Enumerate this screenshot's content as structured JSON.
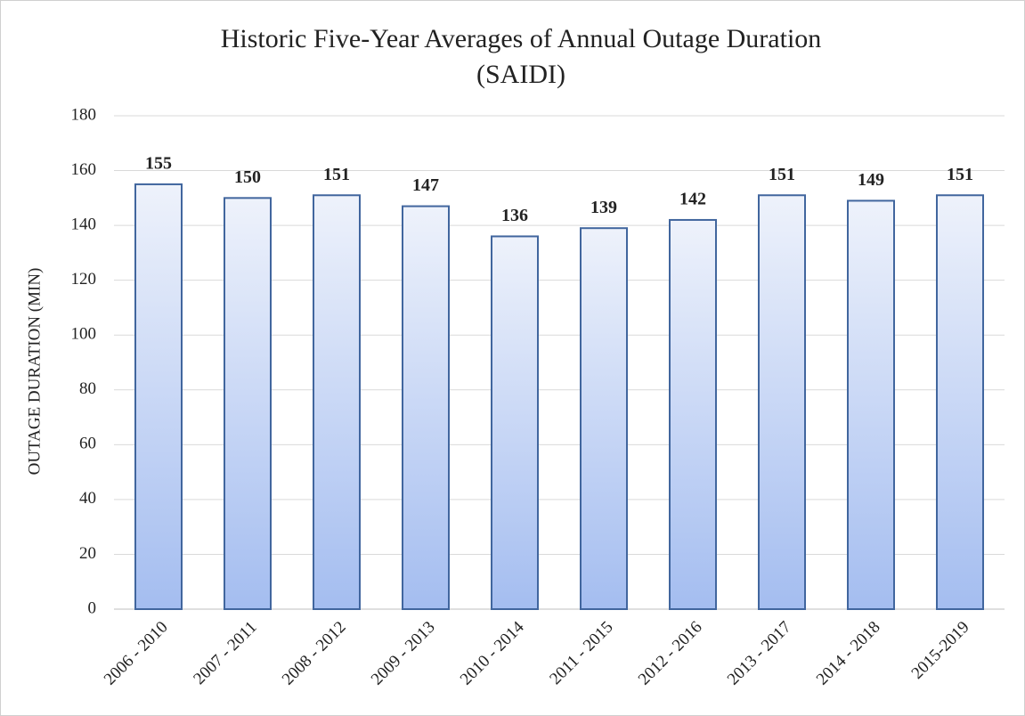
{
  "chart_data": {
    "type": "bar",
    "title": [
      "Historic Five-Year Averages of Annual Outage Duration",
      "(SAIDI)"
    ],
    "ylabel": "OUTAGE DURATION (MIN)",
    "categories": [
      "2006 - 2010",
      "2007 - 2011",
      "2008 - 2012",
      "2009 - 2013",
      "2010 - 2014",
      "2011 - 2015",
      "2012 - 2016",
      "2013 - 2017",
      "2014 - 2018",
      "2015-2019"
    ],
    "values": [
      155,
      150,
      151,
      147,
      136,
      139,
      142,
      151,
      149,
      151
    ],
    "color": "#a4bdf0",
    "edge_color": "#41669e",
    "ylim": [
      0,
      180
    ],
    "yticks": [
      0,
      20,
      40,
      60,
      80,
      100,
      120,
      140,
      160,
      180
    ],
    "grid": true
  }
}
